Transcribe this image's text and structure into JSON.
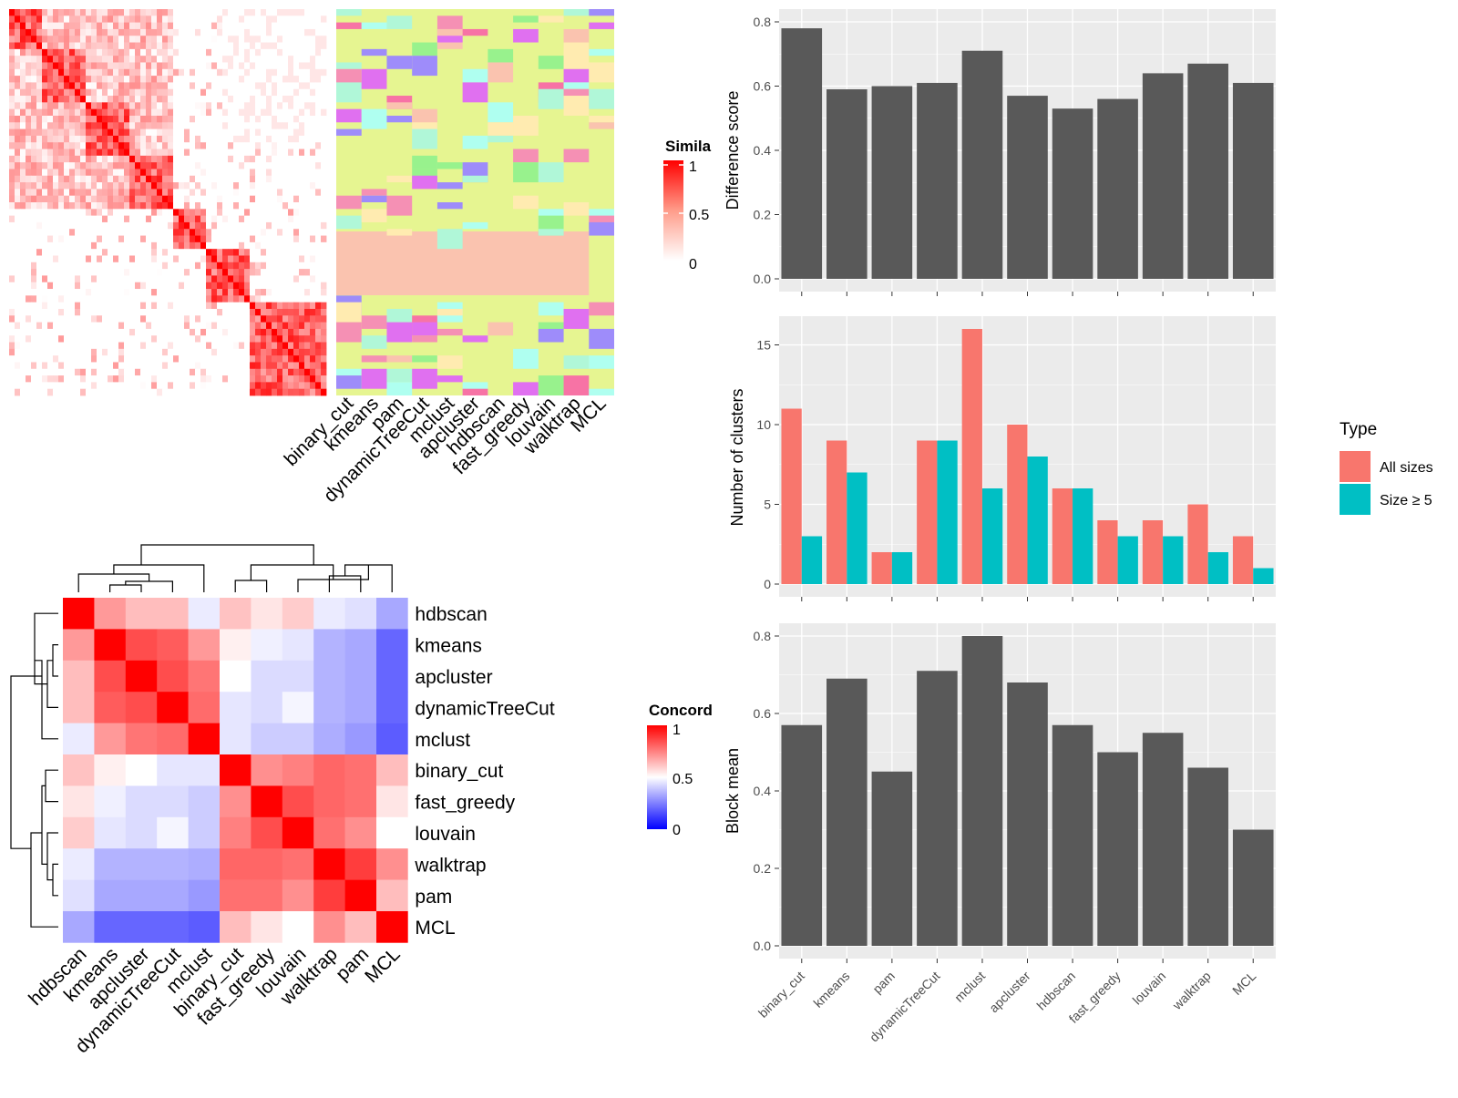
{
  "method_order_similarity": [
    "binary_cut",
    "kmeans",
    "pam",
    "dynamicTreeCut",
    "mclust",
    "apcluster",
    "hdbscan",
    "fast_greedy",
    "louvain",
    "walktrap",
    "MCL"
  ],
  "similarity_legend": {
    "title": "Simila",
    "ticks": [
      "1",
      "0.5",
      "0"
    ]
  },
  "concordance_legend": {
    "title": "Concord",
    "ticks": [
      "1",
      "0.5",
      "0"
    ]
  },
  "type_legend": {
    "title": "Type",
    "items": [
      {
        "label": "All sizes",
        "color": "#F8766D"
      },
      {
        "label": "Size ≥ 5",
        "color": "#00BFC4"
      }
    ]
  },
  "colors": {
    "bar": "#595959",
    "panel_bg": "#EBEBEB",
    "grid": "#FFFFFF",
    "heat_high": "#FF0000",
    "heat_low": "#FFFFFF",
    "conc_low": "#0000FF",
    "conc_mid": "#FFFFFF",
    "conc_high": "#FF0000",
    "class_bg": "#E6F591"
  },
  "chart_data": [
    {
      "type": "heatmap",
      "name": "concordance",
      "rows": [
        "hdbscan",
        "kmeans",
        "apcluster",
        "dynamicTreeCut",
        "mclust",
        "binary_cut",
        "fast_greedy",
        "louvain",
        "walktrap",
        "pam",
        "MCL"
      ],
      "cols": [
        "hdbscan",
        "kmeans",
        "apcluster",
        "dynamicTreeCut",
        "mclust",
        "binary_cut",
        "fast_greedy",
        "louvain",
        "walktrap",
        "pam",
        "MCL"
      ],
      "values": [
        [
          1.0,
          0.7,
          0.63,
          0.63,
          0.46,
          0.62,
          0.55,
          0.6,
          0.46,
          0.44,
          0.33
        ],
        [
          0.7,
          1.0,
          0.85,
          0.82,
          0.7,
          0.53,
          0.47,
          0.45,
          0.35,
          0.33,
          0.2
        ],
        [
          0.63,
          0.85,
          1.0,
          0.85,
          0.77,
          0.5,
          0.43,
          0.43,
          0.35,
          0.33,
          0.2
        ],
        [
          0.63,
          0.82,
          0.85,
          1.0,
          0.79,
          0.45,
          0.43,
          0.48,
          0.35,
          0.33,
          0.2
        ],
        [
          0.46,
          0.7,
          0.77,
          0.79,
          1.0,
          0.45,
          0.4,
          0.4,
          0.34,
          0.3,
          0.18
        ],
        [
          0.62,
          0.53,
          0.5,
          0.45,
          0.45,
          1.0,
          0.72,
          0.75,
          0.8,
          0.78,
          0.63
        ],
        [
          0.55,
          0.47,
          0.43,
          0.43,
          0.4,
          0.72,
          1.0,
          0.85,
          0.8,
          0.78,
          0.55
        ],
        [
          0.6,
          0.45,
          0.43,
          0.48,
          0.4,
          0.75,
          0.85,
          1.0,
          0.78,
          0.72,
          0.5
        ],
        [
          0.46,
          0.35,
          0.35,
          0.35,
          0.34,
          0.8,
          0.8,
          0.78,
          1.0,
          0.88,
          0.72
        ],
        [
          0.44,
          0.33,
          0.33,
          0.33,
          0.3,
          0.78,
          0.78,
          0.72,
          0.88,
          1.0,
          0.63
        ],
        [
          0.33,
          0.2,
          0.2,
          0.2,
          0.18,
          0.63,
          0.55,
          0.5,
          0.72,
          0.63,
          1.0
        ]
      ],
      "range": [
        0,
        1
      ]
    },
    {
      "type": "bar",
      "name": "difference_score",
      "categories": [
        "binary_cut",
        "kmeans",
        "pam",
        "dynamicTreeCut",
        "mclust",
        "apcluster",
        "hdbscan",
        "fast_greedy",
        "louvain",
        "walktrap",
        "MCL"
      ],
      "values": [
        0.78,
        0.59,
        0.6,
        0.61,
        0.71,
        0.57,
        0.53,
        0.56,
        0.64,
        0.67,
        0.61
      ],
      "ylabel": "Difference score",
      "ylim": [
        0,
        0.8
      ],
      "yticks": [
        0.0,
        0.2,
        0.4,
        0.6,
        0.8
      ],
      "ytick_labels": [
        "0.0",
        "0.2",
        "0.4",
        "0.6",
        "0.8"
      ],
      "grid": true
    },
    {
      "type": "bar",
      "name": "number_of_clusters",
      "categories": [
        "binary_cut",
        "kmeans",
        "pam",
        "dynamicTreeCut",
        "mclust",
        "apcluster",
        "hdbscan",
        "fast_greedy",
        "louvain",
        "walktrap",
        "MCL"
      ],
      "series": [
        {
          "name": "All sizes",
          "values": [
            11,
            9,
            2,
            9,
            16,
            10,
            6,
            4,
            4,
            5,
            3
          ]
        },
        {
          "name": "Size ≥ 5",
          "values": [
            3,
            7,
            2,
            9,
            6,
            8,
            6,
            3,
            3,
            2,
            1
          ]
        }
      ],
      "ylabel": "Number of clusters",
      "ylim": [
        0,
        16
      ],
      "yticks": [
        0,
        5,
        10,
        15
      ],
      "ytick_labels": [
        "0",
        "5",
        "10",
        "15"
      ],
      "legend": "right",
      "grid": true
    },
    {
      "type": "bar",
      "name": "block_mean",
      "categories": [
        "binary_cut",
        "kmeans",
        "pam",
        "dynamicTreeCut",
        "mclust",
        "apcluster",
        "hdbscan",
        "fast_greedy",
        "louvain",
        "walktrap",
        "MCL"
      ],
      "values": [
        0.57,
        0.69,
        0.45,
        0.71,
        0.8,
        0.68,
        0.57,
        0.5,
        0.55,
        0.46,
        0.3
      ],
      "ylabel": "Block mean",
      "ylim": [
        0,
        0.8
      ],
      "yticks": [
        0.0,
        0.2,
        0.4,
        0.6,
        0.8
      ],
      "ytick_labels": [
        "0.0",
        "0.2",
        "0.4",
        "0.6",
        "0.8"
      ],
      "grid": true
    }
  ]
}
